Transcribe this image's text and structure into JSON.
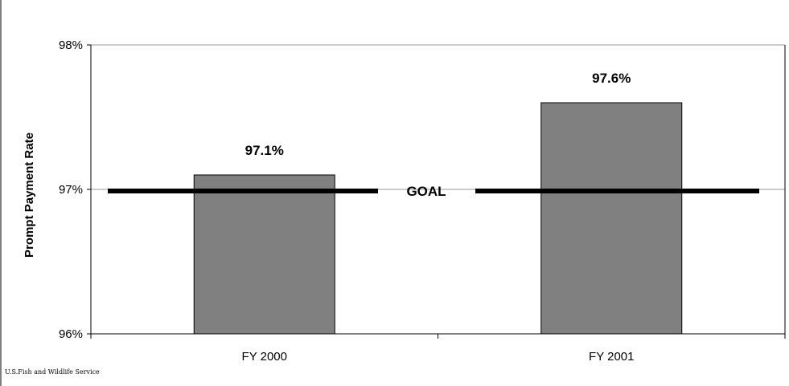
{
  "chart_data": {
    "type": "bar",
    "title": "",
    "xlabel": "",
    "ylabel": "Prompt Payment Rate",
    "categories": [
      "FY 2000",
      "FY 2001"
    ],
    "values": [
      97.1,
      97.6
    ],
    "data_labels": [
      "97.1%",
      "97.6%"
    ],
    "ylim": [
      96,
      98
    ],
    "yticks": [
      96,
      97,
      98
    ],
    "ytick_labels": [
      "96%",
      "97%",
      "98%"
    ],
    "grid": "horizontal",
    "bar_color": "#808080",
    "goal": {
      "value": 97,
      "label": "GOAL",
      "color": "#000000"
    }
  },
  "source_note": "U.S.Fish and Wildlife Service"
}
